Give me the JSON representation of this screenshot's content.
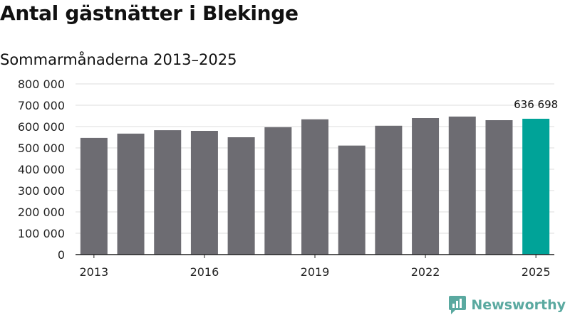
{
  "title": "Antal gästnätter i Blekinge",
  "subtitle": "Sommarmånaderna 2013–2025",
  "brand": {
    "name": "Newsworthy",
    "logo_icon": "newsworthy-chart-bubble-icon",
    "color": "#5aa9a0"
  },
  "colors": {
    "bar": "#6d6c72",
    "highlight": "#00a398",
    "grid": "#dddddd",
    "axis": "#222222"
  },
  "chart_data": {
    "type": "bar",
    "categories": [
      "2013",
      "2014",
      "2015",
      "2016",
      "2017",
      "2018",
      "2019",
      "2020",
      "2021",
      "2022",
      "2023",
      "2024",
      "2025"
    ],
    "values": [
      547000,
      567000,
      583000,
      580000,
      550000,
      597000,
      634000,
      511000,
      604000,
      640000,
      647000,
      630000,
      636698
    ],
    "highlight_index": 12,
    "data_labels": [
      {
        "index": 12,
        "text": "636 698"
      }
    ],
    "x_tick_labels": [
      {
        "index": 0,
        "text": "2013"
      },
      {
        "index": 3,
        "text": "2016"
      },
      {
        "index": 6,
        "text": "2019"
      },
      {
        "index": 9,
        "text": "2022"
      },
      {
        "index": 12,
        "text": "2025"
      }
    ],
    "y_ticks": [
      {
        "value": 0,
        "label": "0"
      },
      {
        "value": 100000,
        "label": "100 000"
      },
      {
        "value": 200000,
        "label": "200 000"
      },
      {
        "value": 300000,
        "label": "300 000"
      },
      {
        "value": 400000,
        "label": "400 000"
      },
      {
        "value": 500000,
        "label": "500 000"
      },
      {
        "value": 600000,
        "label": "600 000"
      },
      {
        "value": 700000,
        "label": "700 000"
      },
      {
        "value": 800000,
        "label": "800 000"
      }
    ],
    "ylim": [
      0,
      800000
    ],
    "grid": true,
    "xlabel": "",
    "ylabel": ""
  }
}
